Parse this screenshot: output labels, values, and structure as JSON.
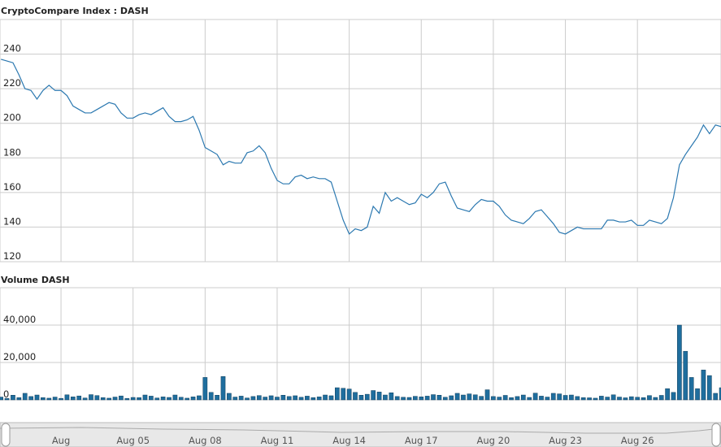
{
  "chart_data": [
    {
      "type": "line",
      "title": "CryptoCompare Index : DASH",
      "x": [
        -0.5,
        -0.25,
        0,
        0.25,
        0.5,
        0.75,
        1,
        1.25,
        1.5,
        1.75,
        2,
        2.25,
        2.5,
        2.75,
        3,
        3.25,
        3.5,
        3.75,
        4,
        4.25,
        4.5,
        4.75,
        5,
        5.25,
        5.5,
        5.75,
        6,
        6.25,
        6.5,
        6.75,
        7,
        7.25,
        7.5,
        7.75,
        8,
        8.25,
        8.5,
        8.75,
        9,
        9.25,
        9.5,
        9.75,
        10,
        10.25,
        10.5,
        10.75,
        11,
        11.25,
        11.5,
        11.75,
        12,
        12.25,
        12.5,
        12.75,
        13,
        13.25,
        13.5,
        13.75,
        14,
        14.25,
        14.5,
        14.75,
        15,
        15.25,
        15.5,
        15.75,
        16,
        16.25,
        16.5,
        16.75,
        17,
        17.25,
        17.5,
        17.75,
        18,
        18.25,
        18.5,
        18.75,
        19,
        19.25,
        19.5,
        19.75,
        20,
        20.25,
        20.5,
        20.75,
        21,
        21.25,
        21.5,
        21.75,
        22,
        22.25,
        22.5,
        22.75,
        23,
        23.25,
        23.5,
        23.75,
        24,
        24.25,
        24.5,
        24.75,
        25,
        25.25,
        25.5,
        25.75,
        26,
        26.25,
        26.5,
        26.75,
        27,
        27.25,
        27.5,
        27.75,
        28,
        28.25,
        28.5,
        28.75,
        29,
        29.25,
        29.5
      ],
      "series": [
        {
          "name": "DASH",
          "color": "#2b78b0",
          "values": [
            237,
            236,
            235,
            228,
            220,
            219,
            214,
            219,
            222,
            219,
            219,
            216,
            210,
            208,
            206,
            206,
            208,
            210,
            212,
            211,
            206,
            203,
            203,
            205,
            206,
            205,
            207,
            209,
            204,
            201,
            201,
            202,
            204,
            196,
            186,
            184,
            182,
            176,
            178,
            177,
            177,
            183,
            184,
            187,
            183,
            174,
            167,
            165,
            165,
            169,
            170,
            168,
            169,
            168,
            168,
            166,
            155,
            144,
            136,
            139,
            138,
            140,
            152,
            148,
            160,
            155,
            157,
            155,
            153,
            154,
            159,
            157,
            160,
            165,
            166,
            158,
            151,
            150,
            149,
            153,
            156,
            155,
            155,
            152,
            147,
            144,
            143,
            142,
            145,
            149,
            150,
            146,
            142,
            137,
            136,
            138,
            140,
            139,
            139,
            139,
            139,
            144,
            144,
            143,
            143,
            144,
            141,
            141,
            144,
            143,
            142,
            145,
            157,
            176,
            182,
            187,
            192,
            199,
            194,
            199,
            198
          ]
        }
      ],
      "xlim": [
        -0.54,
        29.48
      ],
      "xticks": [
        2,
        5,
        8,
        11,
        14,
        17,
        20,
        23,
        26
      ],
      "ylim": [
        120,
        260
      ],
      "yticks": [
        120,
        140,
        160,
        180,
        200,
        220,
        240
      ],
      "grid": true
    },
    {
      "type": "bar",
      "title": "Volume DASH",
      "x": [
        -0.5,
        -0.25,
        0,
        0.25,
        0.5,
        0.75,
        1,
        1.25,
        1.5,
        1.75,
        2,
        2.25,
        2.5,
        2.75,
        3,
        3.25,
        3.5,
        3.75,
        4,
        4.25,
        4.5,
        4.75,
        5,
        5.25,
        5.5,
        5.75,
        6,
        6.25,
        6.5,
        6.75,
        7,
        7.25,
        7.5,
        7.75,
        8,
        8.25,
        8.5,
        8.75,
        9,
        9.25,
        9.5,
        9.75,
        10,
        10.25,
        10.5,
        10.75,
        11,
        11.25,
        11.5,
        11.75,
        12,
        12.25,
        12.5,
        12.75,
        13,
        13.25,
        13.5,
        13.75,
        14,
        14.25,
        14.5,
        14.75,
        15,
        15.25,
        15.5,
        15.75,
        16,
        16.25,
        16.5,
        16.75,
        17,
        17.25,
        17.5,
        17.75,
        18,
        18.25,
        18.5,
        18.75,
        19,
        19.25,
        19.5,
        19.75,
        20,
        20.25,
        20.5,
        20.75,
        21,
        21.25,
        21.5,
        21.75,
        22,
        22.25,
        22.5,
        22.75,
        23,
        23.25,
        23.5,
        23.75,
        24,
        24.25,
        24.5,
        24.75,
        25,
        25.25,
        25.5,
        25.75,
        26,
        26.25,
        26.5,
        26.75,
        27,
        27.25,
        27.5,
        27.75,
        28,
        28.25,
        28.5,
        28.75,
        29,
        29.25,
        29.5
      ],
      "series": [
        {
          "name": "Volume",
          "color": "#1f6e9e",
          "values": [
            1500,
            800,
            2500,
            1200,
            3500,
            1800,
            2600,
            1200,
            900,
            1500,
            800,
            2700,
            1600,
            2100,
            1000,
            2800,
            2300,
            1200,
            900,
            1500,
            2100,
            800,
            1300,
            1200,
            2600,
            2000,
            1000,
            1600,
            1300,
            2600,
            1400,
            900,
            1600,
            2200,
            12000,
            4000,
            2500,
            12500,
            3500,
            1500,
            2000,
            1000,
            1800,
            2300,
            1500,
            2200,
            1500,
            2500,
            1800,
            2200,
            1400,
            2000,
            1200,
            1600,
            2600,
            2200,
            6500,
            6200,
            5800,
            4000,
            2500,
            3000,
            5000,
            4200,
            2600,
            3800,
            1800,
            1400,
            1300,
            1900,
            1600,
            2000,
            2800,
            2500,
            1400,
            2200,
            3500,
            2600,
            3200,
            2700,
            1900,
            5400,
            1800,
            1500,
            2400,
            1200,
            1800,
            2600,
            1300,
            3600,
            2000,
            1500,
            3500,
            3200,
            2400,
            2600,
            1800,
            1200,
            1100,
            900,
            2000,
            1500,
            2700,
            1500,
            1100,
            1700,
            1400,
            1200,
            2300,
            1300,
            2400,
            6000,
            4000,
            40000,
            26000,
            12000,
            6000,
            16000,
            13000,
            3500,
            6500
          ]
        }
      ],
      "xlim": [
        -0.54,
        29.48
      ],
      "xticks": [
        {
          "value": 2,
          "label": "Aug"
        },
        {
          "value": 5,
          "label": "Aug 05"
        },
        {
          "value": 8,
          "label": "Aug 08"
        },
        {
          "value": 11,
          "label": "Aug 11"
        },
        {
          "value": 14,
          "label": "Aug 14"
        },
        {
          "value": 17,
          "label": "Aug 17"
        },
        {
          "value": 20,
          "label": "Aug 20"
        },
        {
          "value": 23,
          "label": "Aug 23"
        },
        {
          "value": 26,
          "label": "Aug 26"
        }
      ],
      "ylim": [
        0,
        60000
      ],
      "yticks": [
        0,
        {
          "value": 20000,
          "label": "20,000"
        },
        {
          "value": 40000,
          "label": "40,000"
        }
      ],
      "grid": true
    }
  ]
}
